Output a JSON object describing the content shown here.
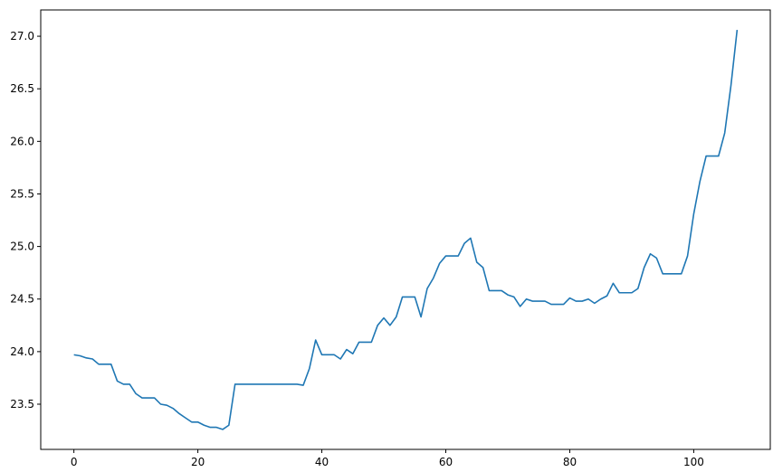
{
  "chart_data": {
    "type": "line",
    "title": "",
    "xlabel": "",
    "ylabel": "",
    "xlim": [
      -5.35,
      112.35
    ],
    "ylim": [
      23.07,
      27.25
    ],
    "grid": false,
    "legend": "none",
    "x_ticks": [
      0,
      20,
      40,
      60,
      80,
      100
    ],
    "x_tick_labels": [
      "0",
      "20",
      "40",
      "60",
      "80",
      "100"
    ],
    "y_ticks": [
      23.5,
      24.0,
      24.5,
      25.0,
      25.5,
      26.0,
      26.5,
      27.0
    ],
    "y_tick_labels": [
      "23.5",
      "24.0",
      "24.5",
      "25.0",
      "25.5",
      "26.0",
      "26.5",
      "27.0"
    ],
    "colors": {
      "series": "#1f77b4",
      "axes": "#000000"
    },
    "series": [
      {
        "values": [
          23.97,
          23.96,
          23.94,
          23.93,
          23.88,
          23.88,
          23.88,
          23.72,
          23.69,
          23.69,
          23.6,
          23.56,
          23.56,
          23.56,
          23.5,
          23.49,
          23.46,
          23.41,
          23.37,
          23.33,
          23.33,
          23.3,
          23.28,
          23.28,
          23.26,
          23.3,
          23.69,
          23.69,
          23.69,
          23.69,
          23.69,
          23.69,
          23.69,
          23.69,
          23.69,
          23.69,
          23.69,
          23.68,
          23.84,
          24.11,
          23.97,
          23.97,
          23.97,
          23.93,
          24.02,
          23.98,
          24.09,
          24.09,
          24.09,
          24.25,
          24.32,
          24.25,
          24.33,
          24.52,
          24.52,
          24.52,
          24.33,
          24.6,
          24.7,
          24.84,
          24.91,
          24.91,
          24.91,
          25.03,
          25.08,
          24.85,
          24.8,
          24.58,
          24.58,
          24.58,
          24.54,
          24.52,
          24.43,
          24.5,
          24.48,
          24.48,
          24.48,
          24.45,
          24.45,
          24.45,
          24.51,
          24.48,
          24.48,
          24.5,
          24.46,
          24.5,
          24.53,
          24.65,
          24.56,
          24.56,
          24.56,
          24.6,
          24.8,
          24.93,
          24.89,
          24.74,
          24.74,
          24.74,
          24.74,
          24.91,
          25.31,
          25.62,
          25.86,
          25.86,
          25.86,
          26.08,
          26.53,
          27.06
        ]
      }
    ]
  }
}
